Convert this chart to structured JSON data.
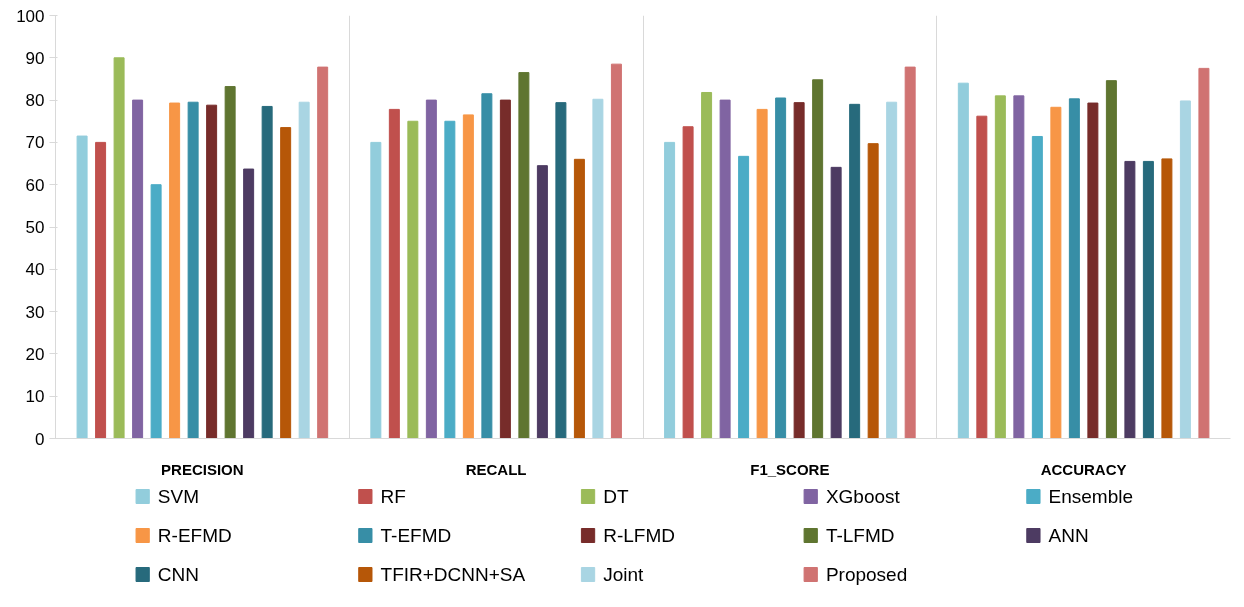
{
  "chart_data": {
    "type": "bar",
    "categories": [
      "PRECISION",
      "RECALL",
      "F1_SCORE",
      "ACCURACY"
    ],
    "ylim": [
      0,
      100
    ],
    "yticks": [
      0,
      10,
      20,
      30,
      40,
      50,
      60,
      70,
      80,
      90,
      100
    ],
    "grid": "x",
    "legend": "bottom",
    "series": [
      {
        "name": "SVM",
        "color": "#92cddc",
        "values": [
          71.5,
          70,
          70,
          84
        ]
      },
      {
        "name": "RF",
        "color": "#c0504d",
        "values": [
          70,
          77.8,
          73.7,
          76.2
        ]
      },
      {
        "name": "DT",
        "color": "#9bbb59",
        "values": [
          90,
          75,
          81.8,
          81
        ]
      },
      {
        "name": "XGboost",
        "color": "#8064a2",
        "values": [
          80,
          80,
          80,
          81
        ]
      },
      {
        "name": "Ensemble",
        "color": "#4bacc6",
        "values": [
          60,
          75,
          66.7,
          71.4
        ]
      },
      {
        "name": "R-EFMD",
        "color": "#f79646",
        "values": [
          79.3,
          76.5,
          77.8,
          78.3
        ]
      },
      {
        "name": "T-EFMD",
        "color": "#378ea6",
        "values": [
          79.5,
          81.5,
          80.5,
          80.3
        ]
      },
      {
        "name": "R-LFMD",
        "color": "#772c2a",
        "values": [
          78.8,
          80,
          79.4,
          79.3
        ]
      },
      {
        "name": "T-LFMD",
        "color": "#5f7530",
        "values": [
          83.2,
          86.5,
          84.8,
          84.6
        ]
      },
      {
        "name": "ANN",
        "color": "#4d3b62",
        "values": [
          63.7,
          64.5,
          64.1,
          65.5
        ]
      },
      {
        "name": "CNN",
        "color": "#276a7c",
        "values": [
          78.5,
          79.4,
          79,
          65.5
        ]
      },
      {
        "name": "TFIR+DCNN+SA",
        "color": "#b65708",
        "values": [
          73.5,
          66,
          69.7,
          66.1
        ]
      },
      {
        "name": "Joint",
        "color": "#a9d5e3",
        "values": [
          79.5,
          80.2,
          79.5,
          79.8
        ]
      },
      {
        "name": "Proposed",
        "color": "#d07372",
        "values": [
          87.8,
          88.5,
          87.8,
          87.5
        ]
      }
    ]
  }
}
